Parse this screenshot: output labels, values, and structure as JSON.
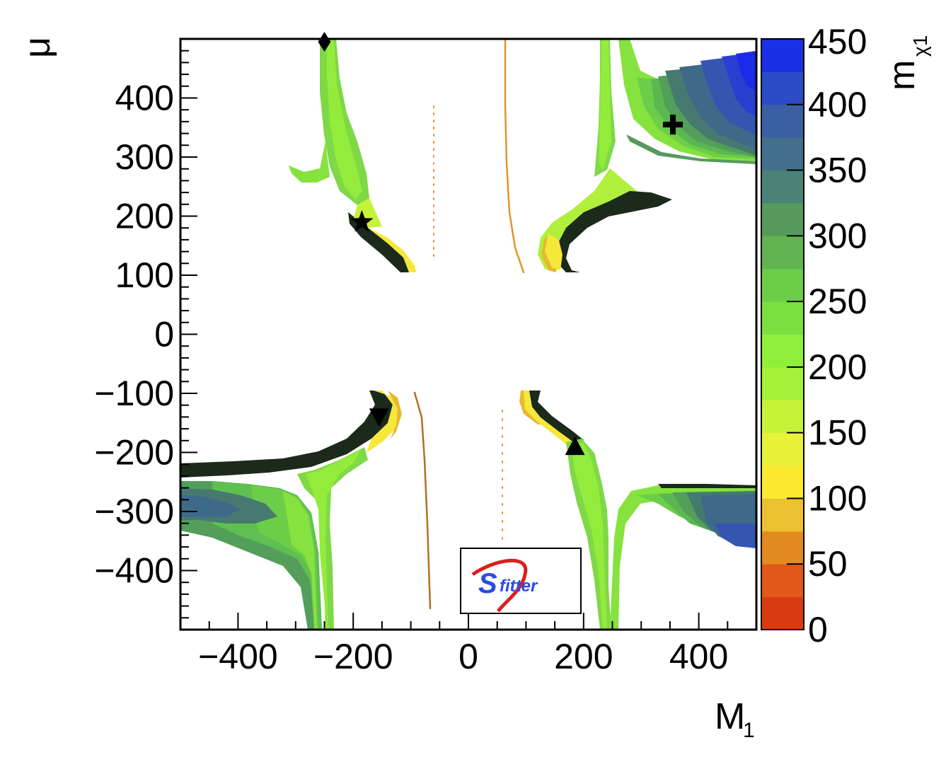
{
  "chart_data": {
    "type": "heatmap",
    "title": "",
    "xlabel": "M",
    "xlabel_sub": "1",
    "ylabel": "μ",
    "xlim": [
      -500,
      500
    ],
    "ylim": [
      -500,
      500
    ],
    "x_ticks": [
      -400,
      -200,
      0,
      200,
      400
    ],
    "x_tick_labels": [
      "−400",
      "−200",
      "0",
      "200",
      "400"
    ],
    "y_ticks": [
      -400,
      -300,
      -200,
      -100,
      0,
      100,
      200,
      300,
      400
    ],
    "y_tick_labels": [
      "−400",
      "−300",
      "−200",
      "−100",
      "0",
      "100",
      "200",
      "300",
      "400"
    ],
    "grid": false,
    "colorbar": {
      "label": "m",
      "label_sub": "χ1",
      "range": [
        0,
        450
      ],
      "ticks": [
        0,
        50,
        100,
        150,
        200,
        250,
        300,
        350,
        400,
        450
      ],
      "tick_labels": [
        "0",
        "50",
        "100",
        "150",
        "200",
        "250",
        "300",
        "350",
        "400",
        "450"
      ],
      "bands": [
        {
          "from": 0,
          "to": 25,
          "color": "#d93a10"
        },
        {
          "from": 25,
          "to": 50,
          "color": "#e25818"
        },
        {
          "from": 50,
          "to": 75,
          "color": "#e28a20"
        },
        {
          "from": 75,
          "to": 100,
          "color": "#ecc030"
        },
        {
          "from": 100,
          "to": 125,
          "color": "#fcea30"
        },
        {
          "from": 125,
          "to": 150,
          "color": "#e8f23a"
        },
        {
          "from": 150,
          "to": 175,
          "color": "#c6f23a"
        },
        {
          "from": 175,
          "to": 200,
          "color": "#a6f23a"
        },
        {
          "from": 200,
          "to": 225,
          "color": "#8ef03a"
        },
        {
          "from": 225,
          "to": 250,
          "color": "#7ae040"
        },
        {
          "from": 250,
          "to": 275,
          "color": "#6cce48"
        },
        {
          "from": 275,
          "to": 300,
          "color": "#62b452"
        },
        {
          "from": 300,
          "to": 325,
          "color": "#589a5c"
        },
        {
          "from": 325,
          "to": 350,
          "color": "#4c8276"
        },
        {
          "from": 350,
          "to": 375,
          "color": "#42708c"
        },
        {
          "from": 375,
          "to": 400,
          "color": "#3a60a4"
        },
        {
          "from": 400,
          "to": 425,
          "color": "#2a4cc4"
        },
        {
          "from": 425,
          "to": 450,
          "color": "#1a30e4"
        }
      ]
    },
    "regions": [
      {
        "id": "upper-left-branch",
        "value_range": [
          120,
          260
        ]
      },
      {
        "id": "upper-right-branch",
        "value_range": [
          120,
          440
        ]
      },
      {
        "id": "lower-left-branch",
        "value_range": [
          120,
          360
        ]
      },
      {
        "id": "lower-right-branch",
        "value_range": [
          120,
          380
        ]
      },
      {
        "id": "thin-lines",
        "value_range": [
          50,
          90
        ]
      }
    ],
    "markers": [
      {
        "symbol": "diamond",
        "x": -250,
        "y": 495
      },
      {
        "symbol": "cross",
        "x": 355,
        "y": 355
      },
      {
        "symbol": "star",
        "x": -185,
        "y": 190
      },
      {
        "symbol": "triangle-down",
        "x": -155,
        "y": -140
      },
      {
        "symbol": "triangle-up",
        "x": 185,
        "y": -190
      }
    ],
    "logo_text": "fitter"
  },
  "palette": {
    "dark": "#1b2a1a",
    "yellow": "#f6e83a",
    "gold": "#e8b830",
    "lightgreen": "#8ef03a",
    "green1": "#72d64a",
    "green2": "#5fbf50",
    "green3": "#529e5a",
    "teal": "#467a70",
    "slate": "#3e6a8a",
    "blue1": "#3456b0",
    "blue2": "#2a3ed0",
    "blue3": "#1a2ae8",
    "orange": "#e0952a",
    "logo_blue": "#2a4ae8",
    "logo_red": "#d82020"
  }
}
